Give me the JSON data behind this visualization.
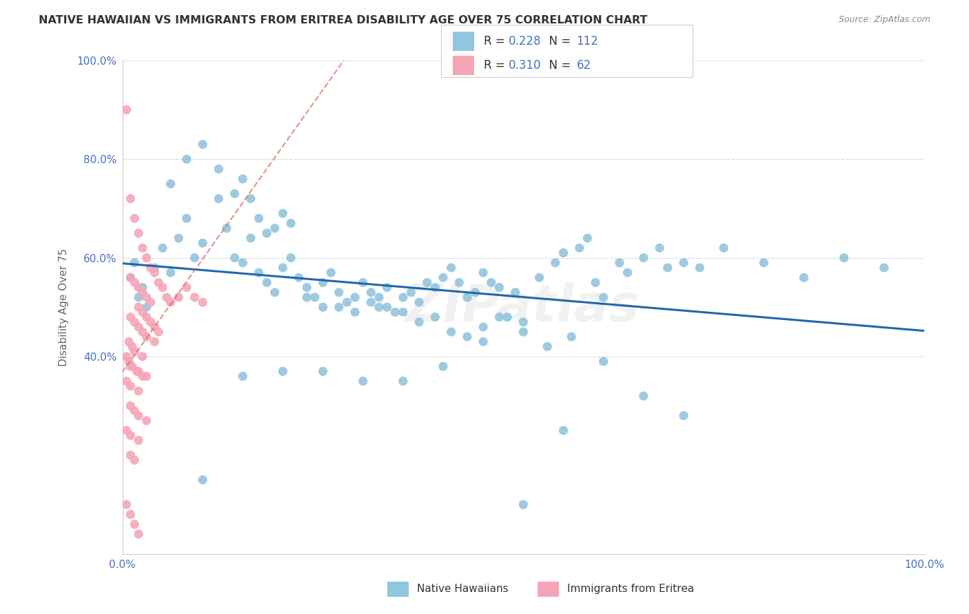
{
  "title": "NATIVE HAWAIIAN VS IMMIGRANTS FROM ERITREA DISABILITY AGE OVER 75 CORRELATION CHART",
  "source": "Source: ZipAtlas.com",
  "ylabel": "Disability Age Over 75",
  "legend_label_1": "Native Hawaiians",
  "legend_label_2": "Immigrants from Eritrea",
  "r1": 0.228,
  "n1": 112,
  "r2": 0.31,
  "n2": 62,
  "color_blue": "#92c5de",
  "color_pink": "#f4a6b8",
  "trendline_blue": "#2166ac",
  "trendline_pink": "#d6604d",
  "watermark": "ZIPatlas",
  "blue_scatter_x": [
    0.02,
    0.01,
    0.015,
    0.025,
    0.03,
    0.04,
    0.05,
    0.06,
    0.07,
    0.08,
    0.09,
    0.1,
    0.12,
    0.13,
    0.14,
    0.15,
    0.16,
    0.17,
    0.18,
    0.19,
    0.2,
    0.21,
    0.22,
    0.23,
    0.24,
    0.25,
    0.26,
    0.27,
    0.28,
    0.29,
    0.3,
    0.31,
    0.32,
    0.33,
    0.34,
    0.35,
    0.36,
    0.37,
    0.38,
    0.39,
    0.4,
    0.41,
    0.42,
    0.43,
    0.44,
    0.45,
    0.46,
    0.47,
    0.48,
    0.49,
    0.5,
    0.52,
    0.54,
    0.55,
    0.57,
    0.58,
    0.59,
    0.6,
    0.62,
    0.63,
    0.65,
    0.67,
    0.68,
    0.7,
    0.72,
    0.75,
    0.8,
    0.85,
    0.9,
    0.95,
    0.06,
    0.08,
    0.1,
    0.12,
    0.14,
    0.15,
    0.16,
    0.17,
    0.18,
    0.19,
    0.2,
    0.21,
    0.23,
    0.25,
    0.27,
    0.29,
    0.31,
    0.33,
    0.35,
    0.37,
    0.39,
    0.41,
    0.43,
    0.45,
    0.47,
    0.5,
    0.53,
    0.56,
    0.6,
    0.65,
    0.7,
    0.3,
    0.35,
    0.4,
    0.25,
    0.2,
    0.15,
    0.5,
    0.55,
    0.45,
    0.1,
    0.32
  ],
  "blue_scatter_y": [
    0.52,
    0.56,
    0.59,
    0.54,
    0.5,
    0.58,
    0.62,
    0.57,
    0.64,
    0.68,
    0.6,
    0.63,
    0.72,
    0.66,
    0.6,
    0.59,
    0.64,
    0.57,
    0.55,
    0.53,
    0.58,
    0.6,
    0.56,
    0.54,
    0.52,
    0.55,
    0.57,
    0.53,
    0.51,
    0.52,
    0.55,
    0.53,
    0.5,
    0.54,
    0.49,
    0.52,
    0.53,
    0.51,
    0.55,
    0.54,
    0.56,
    0.58,
    0.55,
    0.52,
    0.53,
    0.57,
    0.55,
    0.54,
    0.48,
    0.53,
    0.47,
    0.56,
    0.59,
    0.61,
    0.62,
    0.64,
    0.55,
    0.52,
    0.59,
    0.57,
    0.6,
    0.62,
    0.58,
    0.59,
    0.58,
    0.62,
    0.59,
    0.56,
    0.6,
    0.58,
    0.75,
    0.8,
    0.83,
    0.78,
    0.73,
    0.76,
    0.72,
    0.68,
    0.65,
    0.66,
    0.69,
    0.67,
    0.52,
    0.5,
    0.5,
    0.49,
    0.51,
    0.5,
    0.49,
    0.47,
    0.48,
    0.45,
    0.44,
    0.46,
    0.48,
    0.45,
    0.42,
    0.44,
    0.39,
    0.32,
    0.28,
    0.35,
    0.35,
    0.38,
    0.37,
    0.37,
    0.36,
    0.1,
    0.25,
    0.43,
    0.15,
    0.52
  ],
  "pink_scatter_x": [
    0.005,
    0.01,
    0.015,
    0.02,
    0.025,
    0.03,
    0.035,
    0.04,
    0.045,
    0.05,
    0.055,
    0.06,
    0.07,
    0.08,
    0.09,
    0.1,
    0.02,
    0.025,
    0.03,
    0.035,
    0.04,
    0.045,
    0.01,
    0.015,
    0.02,
    0.025,
    0.03,
    0.035,
    0.01,
    0.015,
    0.02,
    0.025,
    0.03,
    0.04,
    0.01,
    0.02,
    0.03,
    0.005,
    0.01,
    0.02,
    0.005,
    0.008,
    0.012,
    0.018,
    0.025,
    0.01,
    0.015,
    0.02,
    0.03,
    0.01,
    0.015,
    0.005,
    0.01,
    0.02,
    0.008,
    0.012,
    0.015,
    0.025,
    0.005,
    0.01,
    0.015,
    0.02
  ],
  "pink_scatter_y": [
    0.9,
    0.72,
    0.68,
    0.65,
    0.62,
    0.6,
    0.58,
    0.57,
    0.55,
    0.54,
    0.52,
    0.51,
    0.52,
    0.54,
    0.52,
    0.51,
    0.5,
    0.49,
    0.48,
    0.47,
    0.46,
    0.45,
    0.56,
    0.55,
    0.54,
    0.53,
    0.52,
    0.51,
    0.48,
    0.47,
    0.46,
    0.45,
    0.44,
    0.43,
    0.38,
    0.37,
    0.36,
    0.35,
    0.34,
    0.33,
    0.4,
    0.39,
    0.38,
    0.37,
    0.36,
    0.3,
    0.29,
    0.28,
    0.27,
    0.2,
    0.19,
    0.25,
    0.24,
    0.23,
    0.43,
    0.42,
    0.41,
    0.4,
    0.1,
    0.08,
    0.06,
    0.04
  ]
}
